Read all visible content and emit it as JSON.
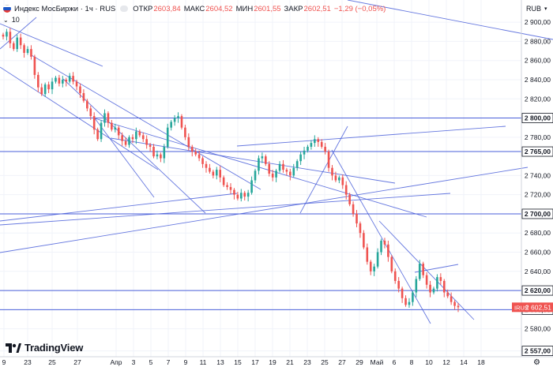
{
  "header": {
    "symbol_title": "Индекс МосБиржи · 1ч · RUS",
    "open_label": "ОТКР",
    "open_value": "2603,84",
    "high_label": "МАКС",
    "high_value": "2604,52",
    "low_label": "МИН",
    "low_value": "2601,55",
    "close_label": "ЗАКР",
    "close_value": "2602,51",
    "change_value": "−1,29 (−0,05%)",
    "indicator_count": "10",
    "currency": "RUB"
  },
  "branding": {
    "logo_text": "TradingView"
  },
  "colors": {
    "up": "#26a69a",
    "down": "#ef5350",
    "drawing_line": "#4a5fd9",
    "price_label": "#ef5350"
  },
  "chart_data": {
    "type": "candlestick",
    "title": "",
    "x_tick_labels": [
      "9",
      "23",
      "25",
      "27",
      "Апр",
      "3",
      "5",
      "7",
      "9",
      "11",
      "13",
      "15",
      "17",
      "19",
      "21",
      "23",
      "25",
      "27",
      "29",
      "Май",
      "6",
      "8",
      "10",
      "12",
      "14",
      "18"
    ],
    "y_tick_labels": [
      "2 900,00",
      "2 880,00",
      "2 860,00",
      "2 840,00",
      "2 820,00",
      "2 800,00",
      "2 780,00",
      "2 765,00",
      "2 740,00",
      "2 720,00",
      "2 700,00",
      "2 680,00",
      "2 660,00",
      "2 640,00",
      "2 620,00",
      "2 600,00",
      "2 580,00",
      "2 557,00"
    ],
    "ylim": [
      2554,
      2915
    ],
    "horizontal_levels": [
      {
        "price": 2800,
        "label": "2 800,00"
      },
      {
        "price": 2765,
        "label": "2 765,00"
      },
      {
        "price": 2700,
        "label": "2 700,00"
      },
      {
        "price": 2620,
        "label": "2 620,00"
      },
      {
        "price": 2600,
        "label": "2 600,00"
      },
      {
        "price": 2557,
        "label": "2 557,00"
      }
    ],
    "last_price": {
      "symbol": "IRUS",
      "value": "2 602,51"
    },
    "closes": [
      2885,
      2890,
      2878,
      2872,
      2884,
      2876,
      2868,
      2872,
      2864,
      2845,
      2832,
      2825,
      2835,
      2830,
      2838,
      2842,
      2836,
      2840,
      2838,
      2844,
      2838,
      2833,
      2826,
      2818,
      2810,
      2802,
      2788,
      2778,
      2795,
      2805,
      2795,
      2788,
      2790,
      2782,
      2776,
      2772,
      2780,
      2778,
      2786,
      2782,
      2778,
      2772,
      2770,
      2760,
      2762,
      2758,
      2770,
      2790,
      2796,
      2800,
      2802,
      2790,
      2780,
      2770,
      2765,
      2762,
      2758,
      2752,
      2748,
      2744,
      2740,
      2746,
      2738,
      2730,
      2728,
      2725,
      2720,
      2716,
      2722,
      2718,
      2722,
      2735,
      2745,
      2758,
      2760,
      2752,
      2742,
      2738,
      2745,
      2752,
      2746,
      2744,
      2740,
      2748,
      2755,
      2762,
      2766,
      2770,
      2774,
      2778,
      2775,
      2770,
      2765,
      2748,
      2740,
      2735,
      2738,
      2730,
      2720,
      2710,
      2700,
      2690,
      2680,
      2665,
      2650,
      2640,
      2645,
      2660,
      2672,
      2668,
      2655,
      2640,
      2630,
      2622,
      2612,
      2605,
      2608,
      2618,
      2632,
      2648,
      2636,
      2626,
      2618,
      2622,
      2634,
      2630,
      2618,
      2614,
      2608,
      2604,
      2602.51
    ]
  }
}
